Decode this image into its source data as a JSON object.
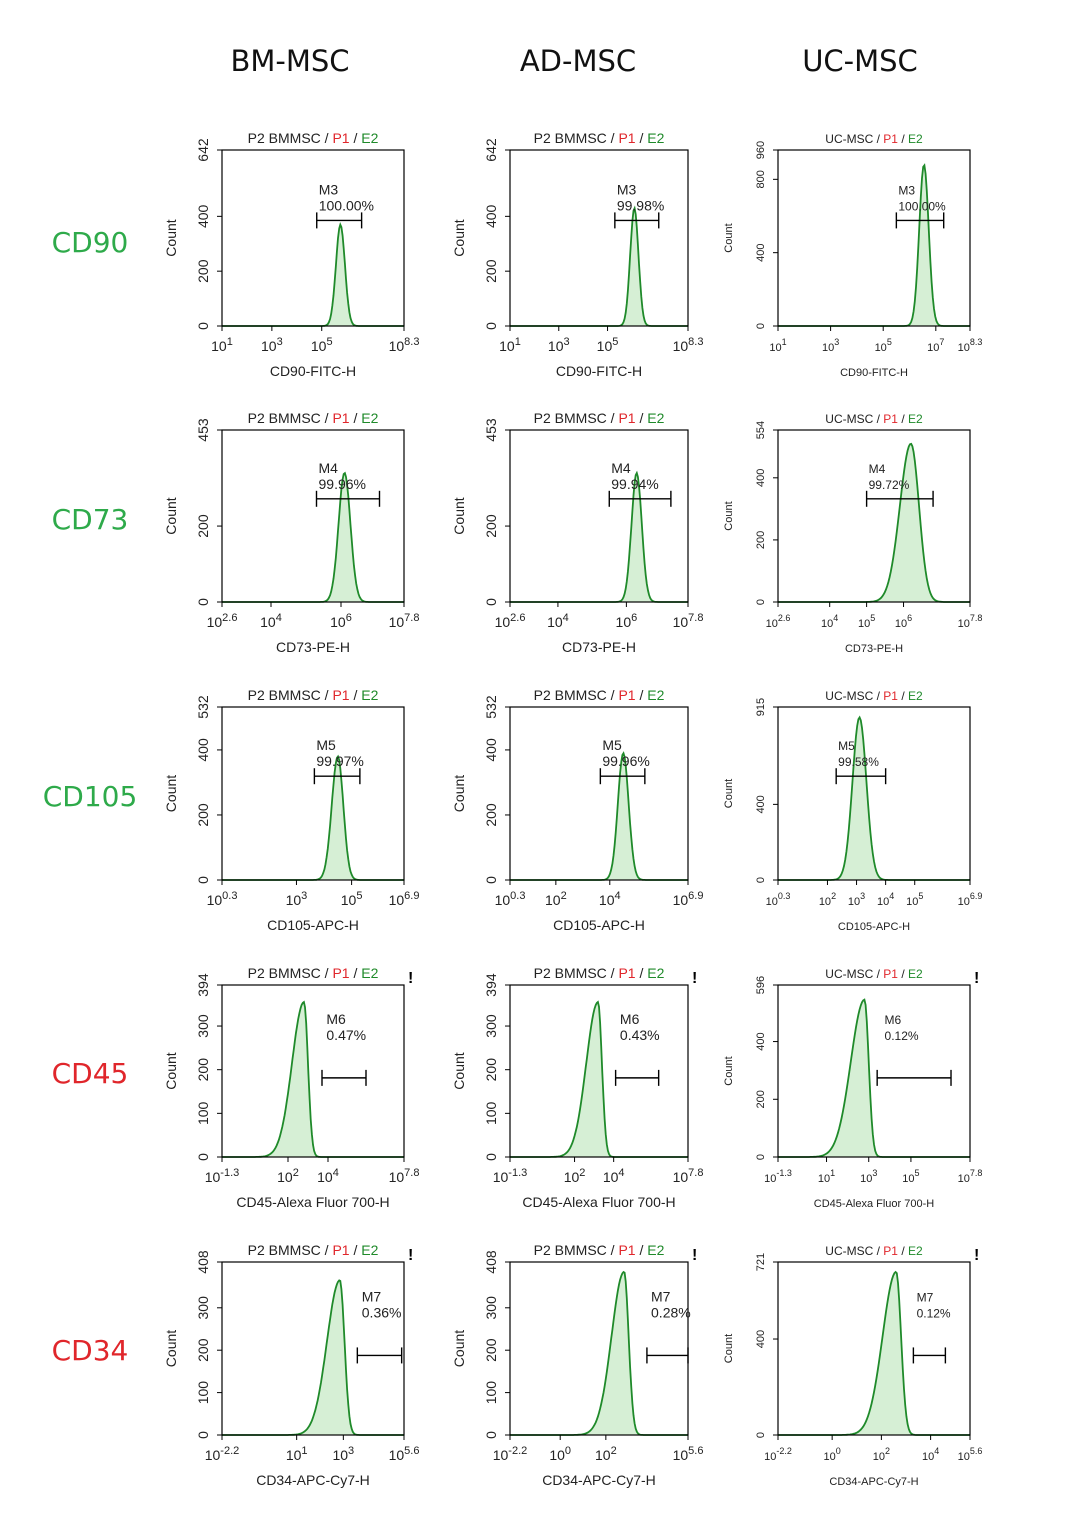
{
  "column_labels": [
    "BM-MSC",
    "AD-MSC",
    "UC-MSC"
  ],
  "row_labels": [
    {
      "text": "CD90",
      "color": "#2eaa4a"
    },
    {
      "text": "CD73",
      "color": "#2eaa4a"
    },
    {
      "text": "CD105",
      "color": "#2eaa4a"
    },
    {
      "text": "CD45",
      "color": "#e0262b"
    },
    {
      "text": "CD34",
      "color": "#e0262b"
    }
  ],
  "colors": {
    "curve": "#1f8a2a",
    "fill": "#d6efd5",
    "p1": "#e0262b",
    "e2": "#1f8a2a",
    "frame": "#000000"
  },
  "chart_data": [
    {
      "type": "area",
      "sample": "P2 BMMSC",
      "gate1": "P1",
      "gate2": "E2",
      "xlabel": "CD90-FITC-H",
      "ylabel": "Count",
      "xlim_log": [
        1,
        8.3
      ],
      "ylim": [
        0,
        642
      ],
      "x_ticks": [
        {
          "base": "10",
          "exp": "1"
        },
        {
          "base": "10",
          "exp": "3"
        },
        {
          "base": "10",
          "exp": "5"
        },
        {
          "base": "10",
          "exp": "8.3"
        }
      ],
      "y_ticks": [
        "0",
        "200",
        "400",
        "642"
      ],
      "marker": {
        "name": "M3",
        "value": "100.00%",
        "range_log": [
          4.8,
          6.6
        ]
      },
      "peak": {
        "center_log": 5.75,
        "sd": 0.18,
        "max": 370,
        "left_sd": 0.18,
        "right_sd": 0.18
      },
      "warn": false
    },
    {
      "type": "area",
      "sample": "P2 BMMSC",
      "gate1": "P1",
      "gate2": "E2",
      "xlabel": "CD90-FITC-H",
      "ylabel": "Count",
      "xlim_log": [
        1,
        8.3
      ],
      "ylim": [
        0,
        642
      ],
      "x_ticks": [
        {
          "base": "10",
          "exp": "1"
        },
        {
          "base": "10",
          "exp": "3"
        },
        {
          "base": "10",
          "exp": "5"
        },
        {
          "base": "10",
          "exp": "8.3"
        }
      ],
      "y_ticks": [
        "0",
        "200",
        "400",
        "642"
      ],
      "marker": {
        "name": "M3",
        "value": "99.98%",
        "range_log": [
          5.3,
          7.1
        ]
      },
      "peak": {
        "center_log": 6.1,
        "sd": 0.17,
        "max": 430,
        "left_sd": 0.17,
        "right_sd": 0.17
      },
      "warn": false
    },
    {
      "type": "area",
      "sample": "UC-MSC",
      "gate1": "P1",
      "gate2": "E2",
      "xlabel": "CD90-FITC-H",
      "ylabel": "Count",
      "xlim_log": [
        1,
        8.3
      ],
      "ylim": [
        0,
        960
      ],
      "x_ticks": [
        {
          "base": "10",
          "exp": "1"
        },
        {
          "base": "10",
          "exp": "3"
        },
        {
          "base": "10",
          "exp": "5"
        },
        {
          "base": "10",
          "exp": "7"
        },
        {
          "base": "10",
          "exp": "8.3"
        }
      ],
      "y_ticks": [
        "0",
        "400",
        "800",
        "960"
      ],
      "marker": {
        "name": "M3",
        "value": "100.00%",
        "range_log": [
          5.5,
          7.3
        ]
      },
      "peak": {
        "center_log": 6.55,
        "sd": 0.18,
        "max": 880,
        "left_sd": 0.18,
        "right_sd": 0.18
      },
      "warn": false
    },
    {
      "type": "area",
      "sample": "P2 BMMSC",
      "gate1": "P1",
      "gate2": "E2",
      "xlabel": "CD73-PE-H",
      "ylabel": "Count",
      "xlim_log": [
        2.6,
        7.8
      ],
      "ylim": [
        0,
        453
      ],
      "x_ticks": [
        {
          "base": "10",
          "exp": "2.6"
        },
        {
          "base": "10",
          "exp": "4"
        },
        {
          "base": "10",
          "exp": "6"
        },
        {
          "base": "10",
          "exp": "7.8"
        }
      ],
      "y_ticks": [
        "0",
        "200",
        "453"
      ],
      "marker": {
        "name": "M4",
        "value": "99.96%",
        "range_log": [
          5.3,
          7.1
        ]
      },
      "peak": {
        "center_log": 6.1,
        "sd": 0.15,
        "max": 340,
        "left_sd": 0.17,
        "right_sd": 0.17
      },
      "warn": false
    },
    {
      "type": "area",
      "sample": "P2 BMMSC",
      "gate1": "P1",
      "gate2": "E2",
      "xlabel": "CD73-PE-H",
      "ylabel": "Count",
      "xlim_log": [
        2.6,
        7.8
      ],
      "ylim": [
        0,
        453
      ],
      "x_ticks": [
        {
          "base": "10",
          "exp": "2.6"
        },
        {
          "base": "10",
          "exp": "4"
        },
        {
          "base": "10",
          "exp": "6"
        },
        {
          "base": "10",
          "exp": "7.8"
        }
      ],
      "y_ticks": [
        "0",
        "200",
        "453"
      ],
      "marker": {
        "name": "M4",
        "value": "99.94%",
        "range_log": [
          5.5,
          7.3
        ]
      },
      "peak": {
        "center_log": 6.3,
        "sd": 0.15,
        "max": 340,
        "left_sd": 0.15,
        "right_sd": 0.15
      },
      "warn": false
    },
    {
      "type": "area",
      "sample": "UC-MSC",
      "gate1": "P1",
      "gate2": "E2",
      "xlabel": "CD73-PE-H",
      "ylabel": "Count",
      "xlim_log": [
        2.6,
        7.8
      ],
      "ylim": [
        0,
        554
      ],
      "x_ticks": [
        {
          "base": "10",
          "exp": "2.6"
        },
        {
          "base": "10",
          "exp": "4"
        },
        {
          "base": "10",
          "exp": "5"
        },
        {
          "base": "10",
          "exp": "6"
        },
        {
          "base": "10",
          "exp": "7.8"
        }
      ],
      "y_ticks": [
        "0",
        "200",
        "400",
        "554"
      ],
      "marker": {
        "name": "M4",
        "value": "99.72%",
        "range_log": [
          5.0,
          6.8
        ]
      },
      "peak": {
        "center_log": 6.2,
        "sd": 0.26,
        "max": 510,
        "left_sd": 0.3,
        "right_sd": 0.22
      },
      "warn": false
    },
    {
      "type": "area",
      "sample": "P2 BMMSC",
      "gate1": "P1",
      "gate2": "E2",
      "xlabel": "CD105-APC-H",
      "ylabel": "Count",
      "xlim_log": [
        0.3,
        6.9
      ],
      "ylim": [
        0,
        532
      ],
      "x_ticks": [
        {
          "base": "10",
          "exp": "0.3"
        },
        {
          "base": "10",
          "exp": "3"
        },
        {
          "base": "10",
          "exp": "5"
        },
        {
          "base": "10",
          "exp": "6.9"
        }
      ],
      "y_ticks": [
        "0",
        "200",
        "400",
        "532"
      ],
      "marker": {
        "name": "M5",
        "value": "99.97%",
        "range_log": [
          3.65,
          5.3
        ]
      },
      "peak": {
        "center_log": 4.5,
        "sd": 0.2,
        "max": 380,
        "left_sd": 0.22,
        "right_sd": 0.2
      },
      "warn": false
    },
    {
      "type": "area",
      "sample": "P2 BMMSC",
      "gate1": "P1",
      "gate2": "E2",
      "xlabel": "CD105-APC-H",
      "ylabel": "Count",
      "xlim_log": [
        0.3,
        6.9
      ],
      "ylim": [
        0,
        532
      ],
      "x_ticks": [
        {
          "base": "10",
          "exp": "0.3"
        },
        {
          "base": "10",
          "exp": "2"
        },
        {
          "base": "10",
          "exp": "4"
        },
        {
          "base": "10",
          "exp": "6.9"
        }
      ],
      "y_ticks": [
        "0",
        "200",
        "400",
        "532"
      ],
      "marker": {
        "name": "M5",
        "value": "99.96%",
        "range_log": [
          3.65,
          5.3
        ]
      },
      "peak": {
        "center_log": 4.5,
        "sd": 0.2,
        "max": 390,
        "left_sd": 0.2,
        "right_sd": 0.2
      },
      "warn": false
    },
    {
      "type": "area",
      "sample": "UC-MSC",
      "gate1": "P1",
      "gate2": "E2",
      "xlabel": "CD105-APC-H",
      "ylabel": "Count",
      "xlim_log": [
        0.3,
        6.9
      ],
      "ylim": [
        0,
        915
      ],
      "x_ticks": [
        {
          "base": "10",
          "exp": "0.3"
        },
        {
          "base": "10",
          "exp": "2"
        },
        {
          "base": "10",
          "exp": "3"
        },
        {
          "base": "10",
          "exp": "4"
        },
        {
          "base": "10",
          "exp": "5"
        },
        {
          "base": "10",
          "exp": "6.9"
        }
      ],
      "y_ticks": [
        "0",
        "400",
        "915"
      ],
      "marker": {
        "name": "M5",
        "value": "99.58%",
        "range_log": [
          2.3,
          4.0
        ]
      },
      "peak": {
        "center_log": 3.1,
        "sd": 0.22,
        "max": 860,
        "left_sd": 0.24,
        "right_sd": 0.24
      },
      "warn": false
    },
    {
      "type": "area",
      "sample": "P2 BMMSC",
      "gate1": "P1",
      "gate2": "E2",
      "xlabel": "CD45-Alexa Fluor 700-H",
      "ylabel": "Count",
      "xlim_log": [
        -1.3,
        7.8
      ],
      "ylim": [
        0,
        394
      ],
      "x_ticks": [
        {
          "base": "10",
          "exp": "-1.3"
        },
        {
          "base": "10",
          "exp": "2"
        },
        {
          "base": "10",
          "exp": "4"
        },
        {
          "base": "10",
          "exp": "7.8"
        }
      ],
      "y_ticks": [
        "0",
        "100",
        "200",
        "300",
        "394"
      ],
      "marker": {
        "name": "M6",
        "value": "0.47%",
        "range_log": [
          3.7,
          5.9
        ]
      },
      "peak": {
        "center_log": 2.8,
        "sd": 0.3,
        "max": 355,
        "left_sd": 0.6,
        "right_sd": 0.2
      },
      "warn": true
    },
    {
      "type": "area",
      "sample": "P2 BMMSC",
      "gate1": "P1",
      "gate2": "E2",
      "xlabel": "CD45-Alexa Fluor 700-H",
      "ylabel": "Count",
      "xlim_log": [
        -1.3,
        7.8
      ],
      "ylim": [
        0,
        394
      ],
      "x_ticks": [
        {
          "base": "10",
          "exp": "-1.3"
        },
        {
          "base": "10",
          "exp": "2"
        },
        {
          "base": "10",
          "exp": "4"
        },
        {
          "base": "10",
          "exp": "7.8"
        }
      ],
      "y_ticks": [
        "0",
        "100",
        "200",
        "300",
        "394"
      ],
      "marker": {
        "name": "M6",
        "value": "0.43%",
        "range_log": [
          4.1,
          6.3
        ]
      },
      "peak": {
        "center_log": 3.2,
        "sd": 0.3,
        "max": 355,
        "left_sd": 0.6,
        "right_sd": 0.2
      },
      "warn": true
    },
    {
      "type": "area",
      "sample": "UC-MSC",
      "gate1": "P1",
      "gate2": "E2",
      "xlabel": "CD45-Alexa Fluor 700-H",
      "ylabel": "Count",
      "xlim_log": [
        -1.3,
        7.8
      ],
      "ylim": [
        0,
        596
      ],
      "x_ticks": [
        {
          "base": "10",
          "exp": "-1.3"
        },
        {
          "base": "10",
          "exp": "1"
        },
        {
          "base": "10",
          "exp": "3"
        },
        {
          "base": "10",
          "exp": "5"
        },
        {
          "base": "10",
          "exp": "7.8"
        }
      ],
      "y_ticks": [
        "0",
        "200",
        "400",
        "596"
      ],
      "marker": {
        "name": "M6",
        "value": "0.12%",
        "range_log": [
          3.4,
          6.9
        ]
      },
      "peak": {
        "center_log": 2.8,
        "sd": 0.3,
        "max": 545,
        "left_sd": 0.65,
        "right_sd": 0.2
      },
      "warn": true
    },
    {
      "type": "area",
      "sample": "P2 BMMSC",
      "gate1": "P1",
      "gate2": "E2",
      "xlabel": "CD34-APC-Cy7-H",
      "ylabel": "Count",
      "xlim_log": [
        -2.2,
        5.6
      ],
      "ylim": [
        0,
        408
      ],
      "x_ticks": [
        {
          "base": "10",
          "exp": "-2.2"
        },
        {
          "base": "10",
          "exp": "1"
        },
        {
          "base": "10",
          "exp": "3"
        },
        {
          "base": "10",
          "exp": "5.6"
        }
      ],
      "y_ticks": [
        "0",
        "100",
        "200",
        "300",
        "408"
      ],
      "marker": {
        "name": "M7",
        "value": "0.36%",
        "range_log": [
          3.6,
          5.5
        ]
      },
      "peak": {
        "center_log": 2.85,
        "sd": 0.3,
        "max": 365,
        "left_sd": 0.55,
        "right_sd": 0.2
      },
      "warn": true
    },
    {
      "type": "area",
      "sample": "P2 BMMSC",
      "gate1": "P1",
      "gate2": "E2",
      "xlabel": "CD34-APC-Cy7-H",
      "ylabel": "Count",
      "xlim_log": [
        -2.2,
        5.6
      ],
      "ylim": [
        0,
        408
      ],
      "x_ticks": [
        {
          "base": "10",
          "exp": "-2.2"
        },
        {
          "base": "10",
          "exp": "0"
        },
        {
          "base": "10",
          "exp": "2"
        },
        {
          "base": "10",
          "exp": "5.6"
        }
      ],
      "y_ticks": [
        "0",
        "100",
        "200",
        "300",
        "408"
      ],
      "marker": {
        "name": "M7",
        "value": "0.28%",
        "range_log": [
          3.8,
          5.6
        ]
      },
      "peak": {
        "center_log": 2.8,
        "sd": 0.3,
        "max": 385,
        "left_sd": 0.55,
        "right_sd": 0.2
      },
      "warn": true
    },
    {
      "type": "area",
      "sample": "UC-MSC",
      "gate1": "P1",
      "gate2": "E2",
      "xlabel": "CD34-APC-Cy7-H",
      "ylabel": "Count",
      "xlim_log": [
        -2.2,
        5.6
      ],
      "ylim": [
        0,
        721
      ],
      "x_ticks": [
        {
          "base": "10",
          "exp": "-2.2"
        },
        {
          "base": "10",
          "exp": "0"
        },
        {
          "base": "10",
          "exp": "2"
        },
        {
          "base": "10",
          "exp": "4"
        },
        {
          "base": "10",
          "exp": "5.6"
        }
      ],
      "y_ticks": [
        "0",
        "400",
        "721"
      ],
      "marker": {
        "name": "M7",
        "value": "0.12%",
        "range_log": [
          3.3,
          4.6
        ]
      },
      "peak": {
        "center_log": 2.6,
        "sd": 0.25,
        "max": 680,
        "left_sd": 0.55,
        "right_sd": 0.2
      },
      "warn": true
    }
  ]
}
